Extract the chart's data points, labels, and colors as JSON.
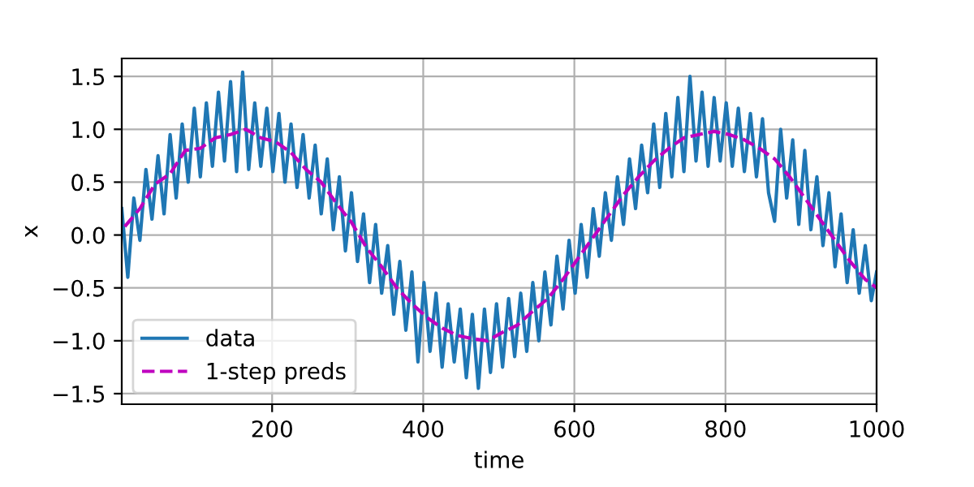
{
  "chart_data": {
    "type": "line",
    "xlabel": "time",
    "ylabel": "x",
    "xlim": [
      1,
      1000
    ],
    "ylim": [
      -1.6,
      1.67
    ],
    "xticks": [
      200,
      400,
      600,
      800,
      1000
    ],
    "yticks": [
      {
        "value": -1.5,
        "label": "−1.5"
      },
      {
        "value": -1.0,
        "label": "−1.0"
      },
      {
        "value": -0.5,
        "label": "−0.5"
      },
      {
        "value": 0.0,
        "label": "0.0"
      },
      {
        "value": 0.5,
        "label": "0.5"
      },
      {
        "value": 1.0,
        "label": "1.0"
      },
      {
        "value": 1.5,
        "label": "1.5"
      }
    ],
    "grid": true,
    "legend": "bottom left",
    "series": [
      {
        "name": "data",
        "color": "#1f77b4",
        "line_style": "solid",
        "x": [
          1,
          9,
          17,
          25,
          33,
          41,
          49,
          57,
          65,
          73,
          81,
          89,
          97,
          105,
          113,
          121,
          129,
          137,
          145,
          153,
          161,
          169,
          177,
          185,
          193,
          201,
          209,
          217,
          225,
          233,
          241,
          249,
          257,
          265,
          273,
          281,
          289,
          297,
          305,
          313,
          321,
          329,
          337,
          345,
          353,
          361,
          369,
          377,
          385,
          393,
          401,
          409,
          417,
          425,
          433,
          441,
          449,
          457,
          465,
          473,
          481,
          489,
          497,
          505,
          513,
          521,
          529,
          537,
          545,
          553,
          561,
          569,
          577,
          585,
          593,
          601,
          609,
          617,
          625,
          633,
          641,
          649,
          657,
          665,
          673,
          681,
          689,
          697,
          705,
          713,
          721,
          729,
          737,
          745,
          753,
          761,
          769,
          777,
          785,
          793,
          801,
          809,
          817,
          825,
          833,
          841,
          849,
          857,
          865,
          873,
          881,
          889,
          897,
          905,
          913,
          921,
          929,
          937,
          945,
          953,
          961,
          969,
          977,
          985,
          993,
          1000
        ],
        "values": [
          0.25,
          -0.4,
          0.35,
          -0.05,
          0.62,
          0.15,
          0.75,
          0.2,
          0.95,
          0.35,
          1.05,
          0.5,
          1.2,
          0.55,
          1.25,
          0.65,
          1.35,
          0.7,
          1.45,
          0.6,
          1.54,
          0.62,
          1.25,
          0.65,
          1.2,
          0.6,
          1.15,
          0.5,
          1.05,
          0.45,
          0.95,
          0.35,
          0.85,
          0.2,
          0.72,
          0.05,
          0.55,
          -0.15,
          0.4,
          -0.25,
          0.2,
          -0.45,
          0.1,
          -0.55,
          -0.1,
          -0.75,
          -0.25,
          -0.9,
          -0.35,
          -1.2,
          -0.45,
          -1.1,
          -0.55,
          -1.25,
          -0.65,
          -1.2,
          -0.7,
          -1.35,
          -0.75,
          -1.45,
          -0.7,
          -1.3,
          -0.65,
          -1.25,
          -0.6,
          -1.15,
          -0.55,
          -1.1,
          -0.45,
          -1.0,
          -0.35,
          -0.85,
          -0.2,
          -0.7,
          -0.05,
          -0.55,
          0.1,
          -0.4,
          0.25,
          -0.2,
          0.4,
          -0.05,
          0.55,
          0.1,
          0.72,
          0.25,
          0.85,
          0.4,
          1.05,
          0.45,
          1.15,
          0.55,
          1.3,
          0.6,
          1.5,
          0.7,
          1.35,
          0.65,
          1.3,
          0.7,
          1.25,
          0.65,
          1.2,
          0.6,
          1.15,
          0.55,
          1.1,
          0.4,
          0.13,
          1.0,
          0.35,
          0.9,
          0.1,
          0.8,
          0.05,
          0.55,
          -0.1,
          0.4,
          -0.3,
          0.2,
          -0.45,
          0.05,
          -0.55,
          -0.1,
          -0.62,
          -0.35
        ]
      },
      {
        "name": "1-step preds",
        "color": "#bf00bf",
        "line_style": "dashed",
        "x": [
          5,
          25,
          45,
          65,
          85,
          105,
          125,
          145,
          165,
          185,
          205,
          225,
          245,
          265,
          285,
          305,
          325,
          345,
          365,
          385,
          405,
          425,
          445,
          465,
          485,
          505,
          525,
          545,
          565,
          585,
          605,
          625,
          645,
          665,
          685,
          705,
          725,
          745,
          765,
          785,
          805,
          825,
          845,
          865,
          885,
          905,
          925,
          945,
          965,
          985,
          1000
        ],
        "values": [
          0.08,
          0.25,
          0.48,
          0.58,
          0.8,
          0.82,
          0.92,
          0.95,
          1.0,
          0.92,
          0.88,
          0.78,
          0.62,
          0.5,
          0.3,
          0.12,
          -0.12,
          -0.3,
          -0.5,
          -0.65,
          -0.78,
          -0.88,
          -0.95,
          -0.98,
          -1.0,
          -0.92,
          -0.85,
          -0.72,
          -0.6,
          -0.42,
          -0.22,
          -0.02,
          0.18,
          0.38,
          0.55,
          0.7,
          0.82,
          0.92,
          0.95,
          0.98,
          0.95,
          0.9,
          0.82,
          0.72,
          0.55,
          0.35,
          0.15,
          -0.05,
          -0.25,
          -0.42,
          -0.5
        ]
      }
    ]
  }
}
